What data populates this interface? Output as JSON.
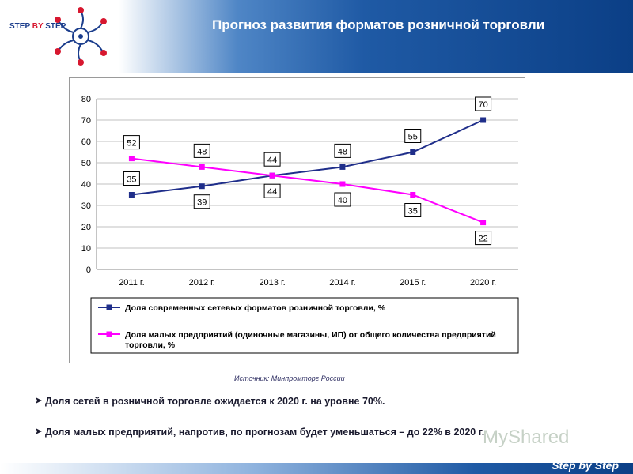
{
  "header": {
    "title": "Прогноз развития форматов розничной торговли",
    "logo_text_part1": "STEP ",
    "logo_text_part2": "BY",
    "logo_text_part3": " STEP"
  },
  "chart_data": {
    "type": "line",
    "categories": [
      "2011 г.",
      "2012 г.",
      "2013 г.",
      "2014 г.",
      "2015 г.",
      "2020 г."
    ],
    "ylim": [
      0,
      80
    ],
    "yticks": [
      0,
      10,
      20,
      30,
      40,
      50,
      60,
      70,
      80
    ],
    "grid": true,
    "legend_position": "bottom",
    "series": [
      {
        "name": "Доля современных сетевых форматов розничной торговли, %",
        "values": [
          35,
          39,
          44,
          48,
          55,
          70
        ],
        "color": "#1f2e8a"
      },
      {
        "name": "Доля малых предприятий (одиночные магазины, ИП) от общего количества предприятий торговли, %",
        "values": [
          52,
          48,
          44,
          40,
          35,
          22
        ],
        "color": "#ff00ff"
      }
    ]
  },
  "source": "Источник: Минпромторг России",
  "bullets": [
    "Доля сетей в розничной торговле ожидается к 2020 г. на уровне 70%.",
    "Доля малых предприятий, напротив, по прогнозам будет уменьшаться – до 22% в 2020 г."
  ],
  "footer": {
    "brand": "Step by Step"
  },
  "watermark": "MyShared"
}
